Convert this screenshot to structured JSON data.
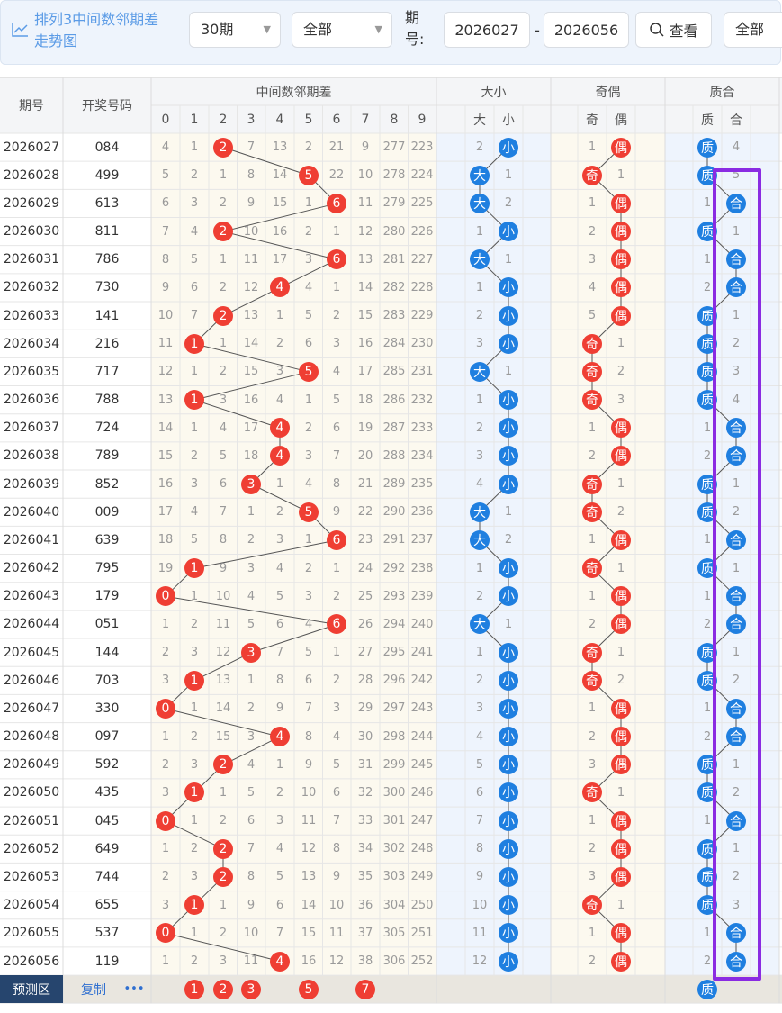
{
  "toolbar": {
    "title": "排列3中间数邻期差走势图",
    "period_select": "30期",
    "filter_select": "全部",
    "issue_label": "期号:",
    "issue_from": "2026027",
    "range_sep": "-",
    "issue_to": "2026056",
    "query_button": "查看",
    "extra_select": "全部"
  },
  "header": {
    "issue": "期号",
    "number": "开奖号码",
    "diff_title": "中间数邻期差",
    "diff_cols": [
      "0",
      "1",
      "2",
      "3",
      "4",
      "5",
      "6",
      "7",
      "8",
      "9"
    ],
    "size_title": "大小",
    "size_cols": [
      "大",
      "小"
    ],
    "parity_title": "奇偶",
    "parity_cols": [
      "奇",
      "偶"
    ],
    "prime_title": "质合",
    "prime_cols": [
      "质",
      "合"
    ]
  },
  "rows": [
    {
      "issue": "2026027",
      "number": "084",
      "diff": [
        4,
        1,
        {
          "ball": "2"
        },
        7,
        13,
        2,
        21,
        9,
        277,
        223
      ],
      "size": [
        2,
        {
          "ball": "小"
        }
      ],
      "parity": [
        1,
        {
          "ball": "偶"
        }
      ],
      "prime": [
        {
          "ball": "质"
        },
        4
      ]
    },
    {
      "issue": "2026028",
      "number": "499",
      "diff": [
        5,
        2,
        1,
        8,
        14,
        {
          "ball": "5"
        },
        22,
        10,
        278,
        224
      ],
      "size": [
        {
          "ball": "大"
        },
        1
      ],
      "parity": [
        {
          "ball": "奇"
        },
        1
      ],
      "prime": [
        {
          "ball": "质"
        },
        5
      ]
    },
    {
      "issue": "2026029",
      "number": "613",
      "diff": [
        6,
        3,
        2,
        9,
        15,
        1,
        {
          "ball": "6"
        },
        11,
        279,
        225
      ],
      "size": [
        {
          "ball": "大"
        },
        2
      ],
      "parity": [
        1,
        {
          "ball": "偶"
        }
      ],
      "prime": [
        1,
        {
          "ball": "合"
        }
      ]
    },
    {
      "issue": "2026030",
      "number": "811",
      "diff": [
        7,
        4,
        {
          "ball": "2"
        },
        10,
        16,
        2,
        1,
        12,
        280,
        226
      ],
      "size": [
        1,
        {
          "ball": "小"
        }
      ],
      "parity": [
        2,
        {
          "ball": "偶"
        }
      ],
      "prime": [
        {
          "ball": "质"
        },
        1
      ]
    },
    {
      "issue": "2026031",
      "number": "786",
      "diff": [
        8,
        5,
        1,
        11,
        17,
        3,
        {
          "ball": "6"
        },
        13,
        281,
        227
      ],
      "size": [
        {
          "ball": "大"
        },
        1
      ],
      "parity": [
        3,
        {
          "ball": "偶"
        }
      ],
      "prime": [
        1,
        {
          "ball": "合"
        }
      ]
    },
    {
      "issue": "2026032",
      "number": "730",
      "diff": [
        9,
        6,
        2,
        12,
        {
          "ball": "4"
        },
        4,
        1,
        14,
        282,
        228
      ],
      "size": [
        1,
        {
          "ball": "小"
        }
      ],
      "parity": [
        4,
        {
          "ball": "偶"
        }
      ],
      "prime": [
        2,
        {
          "ball": "合"
        }
      ]
    },
    {
      "issue": "2026033",
      "number": "141",
      "diff": [
        10,
        7,
        {
          "ball": "2"
        },
        13,
        1,
        5,
        2,
        15,
        283,
        229
      ],
      "size": [
        2,
        {
          "ball": "小"
        }
      ],
      "parity": [
        5,
        {
          "ball": "偶"
        }
      ],
      "prime": [
        {
          "ball": "质"
        },
        1
      ]
    },
    {
      "issue": "2026034",
      "number": "216",
      "diff": [
        11,
        {
          "ball": "1"
        },
        1,
        14,
        2,
        6,
        3,
        16,
        284,
        230
      ],
      "size": [
        3,
        {
          "ball": "小"
        }
      ],
      "parity": [
        {
          "ball": "奇"
        },
        1
      ],
      "prime": [
        {
          "ball": "质"
        },
        2
      ]
    },
    {
      "issue": "2026035",
      "number": "717",
      "diff": [
        12,
        1,
        2,
        15,
        3,
        {
          "ball": "5"
        },
        4,
        17,
        285,
        231
      ],
      "size": [
        {
          "ball": "大"
        },
        1
      ],
      "parity": [
        {
          "ball": "奇"
        },
        2
      ],
      "prime": [
        {
          "ball": "质"
        },
        3
      ]
    },
    {
      "issue": "2026036",
      "number": "788",
      "diff": [
        13,
        {
          "ball": "1"
        },
        3,
        16,
        4,
        1,
        5,
        18,
        286,
        232
      ],
      "size": [
        1,
        {
          "ball": "小"
        }
      ],
      "parity": [
        {
          "ball": "奇"
        },
        3
      ],
      "prime": [
        {
          "ball": "质"
        },
        4
      ]
    },
    {
      "issue": "2026037",
      "number": "724",
      "diff": [
        14,
        1,
        4,
        17,
        {
          "ball": "4"
        },
        2,
        6,
        19,
        287,
        233
      ],
      "size": [
        2,
        {
          "ball": "小"
        }
      ],
      "parity": [
        1,
        {
          "ball": "偶"
        }
      ],
      "prime": [
        1,
        {
          "ball": "合"
        }
      ]
    },
    {
      "issue": "2026038",
      "number": "789",
      "diff": [
        15,
        2,
        5,
        18,
        {
          "ball": "4"
        },
        3,
        7,
        20,
        288,
        234
      ],
      "size": [
        3,
        {
          "ball": "小"
        }
      ],
      "parity": [
        2,
        {
          "ball": "偶"
        }
      ],
      "prime": [
        2,
        {
          "ball": "合"
        }
      ]
    },
    {
      "issue": "2026039",
      "number": "852",
      "diff": [
        16,
        3,
        6,
        {
          "ball": "3"
        },
        1,
        4,
        8,
        21,
        289,
        235
      ],
      "size": [
        4,
        {
          "ball": "小"
        }
      ],
      "parity": [
        {
          "ball": "奇"
        },
        1
      ],
      "prime": [
        {
          "ball": "质"
        },
        1
      ]
    },
    {
      "issue": "2026040",
      "number": "009",
      "diff": [
        17,
        4,
        7,
        1,
        2,
        {
          "ball": "5"
        },
        9,
        22,
        290,
        236
      ],
      "size": [
        {
          "ball": "大"
        },
        1
      ],
      "parity": [
        {
          "ball": "奇"
        },
        2
      ],
      "prime": [
        {
          "ball": "质"
        },
        2
      ]
    },
    {
      "issue": "2026041",
      "number": "639",
      "diff": [
        18,
        5,
        8,
        2,
        3,
        1,
        {
          "ball": "6"
        },
        23,
        291,
        237
      ],
      "size": [
        {
          "ball": "大"
        },
        2
      ],
      "parity": [
        1,
        {
          "ball": "偶"
        }
      ],
      "prime": [
        1,
        {
          "ball": "合"
        }
      ]
    },
    {
      "issue": "2026042",
      "number": "795",
      "diff": [
        19,
        {
          "ball": "1"
        },
        9,
        3,
        4,
        2,
        1,
        24,
        292,
        238
      ],
      "size": [
        1,
        {
          "ball": "小"
        }
      ],
      "parity": [
        {
          "ball": "奇"
        },
        1
      ],
      "prime": [
        {
          "ball": "质"
        },
        1
      ]
    },
    {
      "issue": "2026043",
      "number": "179",
      "diff": [
        {
          "ball": "0"
        },
        1,
        10,
        4,
        5,
        3,
        2,
        25,
        293,
        239
      ],
      "size": [
        2,
        {
          "ball": "小"
        }
      ],
      "parity": [
        1,
        {
          "ball": "偶"
        }
      ],
      "prime": [
        1,
        {
          "ball": "合"
        }
      ]
    },
    {
      "issue": "2026044",
      "number": "051",
      "diff": [
        1,
        2,
        11,
        5,
        6,
        4,
        {
          "ball": "6"
        },
        26,
        294,
        240
      ],
      "size": [
        {
          "ball": "大"
        },
        1
      ],
      "parity": [
        2,
        {
          "ball": "偶"
        }
      ],
      "prime": [
        2,
        {
          "ball": "合"
        }
      ]
    },
    {
      "issue": "2026045",
      "number": "144",
      "diff": [
        2,
        3,
        12,
        {
          "ball": "3"
        },
        7,
        5,
        1,
        27,
        295,
        241
      ],
      "size": [
        1,
        {
          "ball": "小"
        }
      ],
      "parity": [
        {
          "ball": "奇"
        },
        1
      ],
      "prime": [
        {
          "ball": "质"
        },
        1
      ]
    },
    {
      "issue": "2026046",
      "number": "703",
      "diff": [
        3,
        {
          "ball": "1"
        },
        13,
        1,
        8,
        6,
        2,
        28,
        296,
        242
      ],
      "size": [
        2,
        {
          "ball": "小"
        }
      ],
      "parity": [
        {
          "ball": "奇"
        },
        2
      ],
      "prime": [
        {
          "ball": "质"
        },
        2
      ]
    },
    {
      "issue": "2026047",
      "number": "330",
      "diff": [
        {
          "ball": "0"
        },
        1,
        14,
        2,
        9,
        7,
        3,
        29,
        297,
        243
      ],
      "size": [
        3,
        {
          "ball": "小"
        }
      ],
      "parity": [
        1,
        {
          "ball": "偶"
        }
      ],
      "prime": [
        1,
        {
          "ball": "合"
        }
      ]
    },
    {
      "issue": "2026048",
      "number": "097",
      "diff": [
        1,
        2,
        15,
        3,
        {
          "ball": "4"
        },
        8,
        4,
        30,
        298,
        244
      ],
      "size": [
        4,
        {
          "ball": "小"
        }
      ],
      "parity": [
        2,
        {
          "ball": "偶"
        }
      ],
      "prime": [
        2,
        {
          "ball": "合"
        }
      ]
    },
    {
      "issue": "2026049",
      "number": "592",
      "diff": [
        2,
        3,
        {
          "ball": "2"
        },
        4,
        1,
        9,
        5,
        31,
        299,
        245
      ],
      "size": [
        5,
        {
          "ball": "小"
        }
      ],
      "parity": [
        3,
        {
          "ball": "偶"
        }
      ],
      "prime": [
        {
          "ball": "质"
        },
        1
      ]
    },
    {
      "issue": "2026050",
      "number": "435",
      "diff": [
        3,
        {
          "ball": "1"
        },
        1,
        5,
        2,
        10,
        6,
        32,
        300,
        246
      ],
      "size": [
        6,
        {
          "ball": "小"
        }
      ],
      "parity": [
        {
          "ball": "奇"
        },
        1
      ],
      "prime": [
        {
          "ball": "质"
        },
        2
      ]
    },
    {
      "issue": "2026051",
      "number": "045",
      "diff": [
        {
          "ball": "0"
        },
        1,
        2,
        6,
        3,
        11,
        7,
        33,
        301,
        247
      ],
      "size": [
        7,
        {
          "ball": "小"
        }
      ],
      "parity": [
        1,
        {
          "ball": "偶"
        }
      ],
      "prime": [
        1,
        {
          "ball": "合"
        }
      ]
    },
    {
      "issue": "2026052",
      "number": "649",
      "diff": [
        1,
        2,
        {
          "ball": "2"
        },
        7,
        4,
        12,
        8,
        34,
        302,
        248
      ],
      "size": [
        8,
        {
          "ball": "小"
        }
      ],
      "parity": [
        2,
        {
          "ball": "偶"
        }
      ],
      "prime": [
        {
          "ball": "质"
        },
        1
      ]
    },
    {
      "issue": "2026053",
      "number": "744",
      "diff": [
        2,
        3,
        {
          "ball": "2"
        },
        8,
        5,
        13,
        9,
        35,
        303,
        249
      ],
      "size": [
        9,
        {
          "ball": "小"
        }
      ],
      "parity": [
        3,
        {
          "ball": "偶"
        }
      ],
      "prime": [
        {
          "ball": "质"
        },
        2
      ]
    },
    {
      "issue": "2026054",
      "number": "655",
      "diff": [
        3,
        {
          "ball": "1"
        },
        1,
        9,
        6,
        14,
        10,
        36,
        304,
        250
      ],
      "size": [
        10,
        {
          "ball": "小"
        }
      ],
      "parity": [
        {
          "ball": "奇"
        },
        1
      ],
      "prime": [
        {
          "ball": "质"
        },
        3
      ]
    },
    {
      "issue": "2026055",
      "number": "537",
      "diff": [
        {
          "ball": "0"
        },
        1,
        2,
        10,
        7,
        15,
        11,
        37,
        305,
        251
      ],
      "size": [
        11,
        {
          "ball": "小"
        }
      ],
      "parity": [
        1,
        {
          "ball": "偶"
        }
      ],
      "prime": [
        1,
        {
          "ball": "合"
        }
      ]
    },
    {
      "issue": "2026056",
      "number": "119",
      "diff": [
        1,
        2,
        3,
        11,
        {
          "ball": "4"
        },
        16,
        12,
        38,
        306,
        252
      ],
      "size": [
        12,
        {
          "ball": "小"
        }
      ],
      "parity": [
        2,
        {
          "ball": "偶"
        }
      ],
      "prime": [
        2,
        {
          "ball": "合"
        }
      ]
    }
  ],
  "predict": {
    "label": "预测区",
    "copy": "复制",
    "more": "•••",
    "diff": [
      null,
      {
        "ball": "1"
      },
      {
        "ball": "2"
      },
      {
        "ball": "3"
      },
      null,
      {
        "ball": "5"
      },
      null,
      {
        "ball": "7"
      },
      null,
      null
    ],
    "size": [
      null,
      null
    ],
    "parity": [
      null,
      null
    ],
    "prime": [
      {
        "ball": "质"
      },
      null
    ]
  }
}
